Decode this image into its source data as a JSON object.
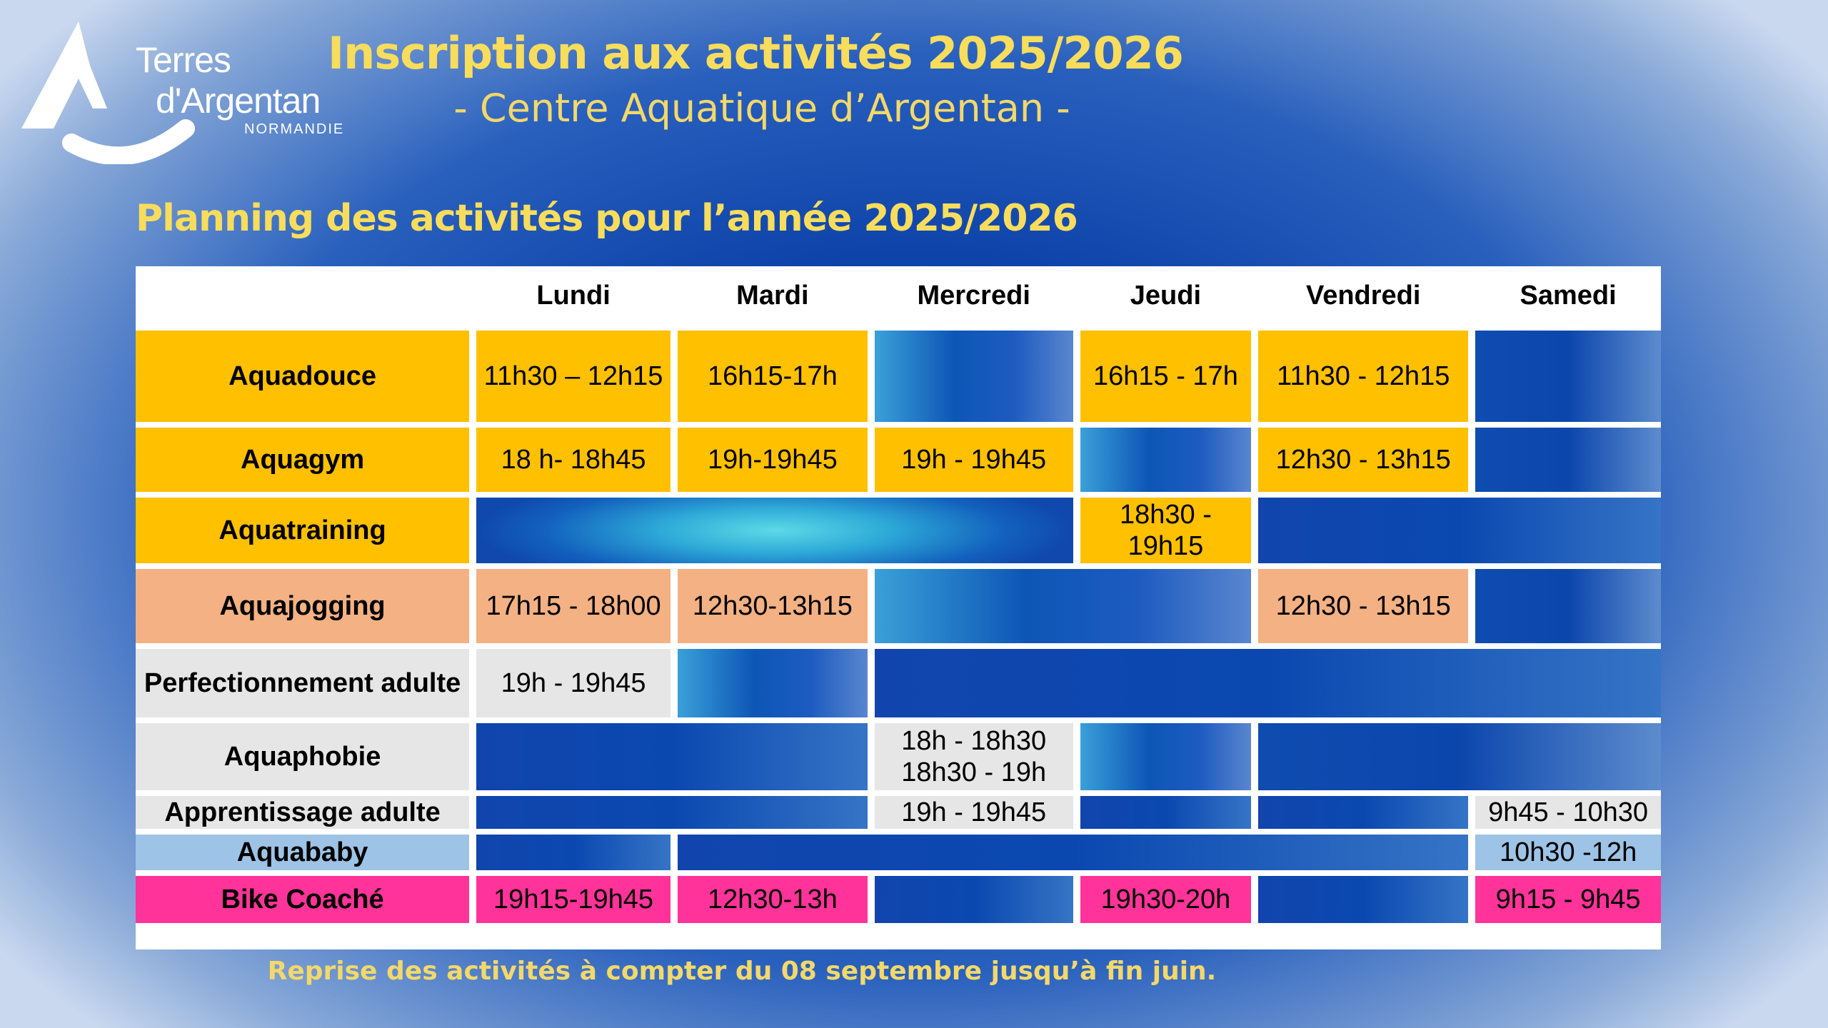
{
  "brand": {
    "line1": "Terres",
    "line2": "d'Argentan",
    "line3": "NORMANDIE"
  },
  "header": {
    "title": "Inscription aux activités 2025/2026",
    "subtitle": "- Centre Aquatique d’Argentan -"
  },
  "planning_title": "Planning des activités pour l’année 2025/2026",
  "schedule": {
    "days": [
      "Lundi",
      "Mardi",
      "Mercredi",
      "Jeudi",
      "Vendredi",
      "Samedi"
    ],
    "rows": [
      {
        "activity": "Aquadouce",
        "lundi": "11h30 – 12h15",
        "mardi": "16h15-17h",
        "jeudi": "16h15 - 17h",
        "vendredi": "11h30 - 12h15"
      },
      {
        "activity": "Aquagym",
        "lundi": "18 h- 18h45",
        "mardi": "19h-19h45",
        "mercredi": "19h - 19h45",
        "vendredi": "12h30 - 13h15"
      },
      {
        "activity": "Aquatraining",
        "jeudi": "18h30 - 19h15"
      },
      {
        "activity": "Aquajogging",
        "lundi": "17h15 - 18h00",
        "mardi": "12h30-13h15",
        "vendredi": "12h30 - 13h15"
      },
      {
        "activity": "Perfectionnement adulte",
        "lundi": "19h - 19h45"
      },
      {
        "activity": "Aquaphobie",
        "mercredi_1": "18h - 18h30",
        "mercredi_2": "18h30 - 19h"
      },
      {
        "activity": "Apprentissage adulte",
        "mercredi": "19h - 19h45",
        "samedi": "9h45 - 10h30"
      },
      {
        "activity": "Aquababy",
        "samedi": "10h30 -12h"
      },
      {
        "activity": "Bike Coaché",
        "lundi": "19h15-19h45",
        "mardi": "12h30-13h",
        "jeudi": "19h30-20h",
        "samedi": "9h15 - 9h45"
      }
    ]
  },
  "footer": "Reprise des activités à compter du 08 septembre jusqu’à fin juin.",
  "colors": {
    "title_yellow": "#f8dd5c",
    "cell_yellow": "#ffc000",
    "cell_salmon": "#f4b183",
    "cell_grey": "#e7e6e6",
    "cell_lightblue": "#9dc3e6",
    "cell_pink": "#ff3399"
  }
}
